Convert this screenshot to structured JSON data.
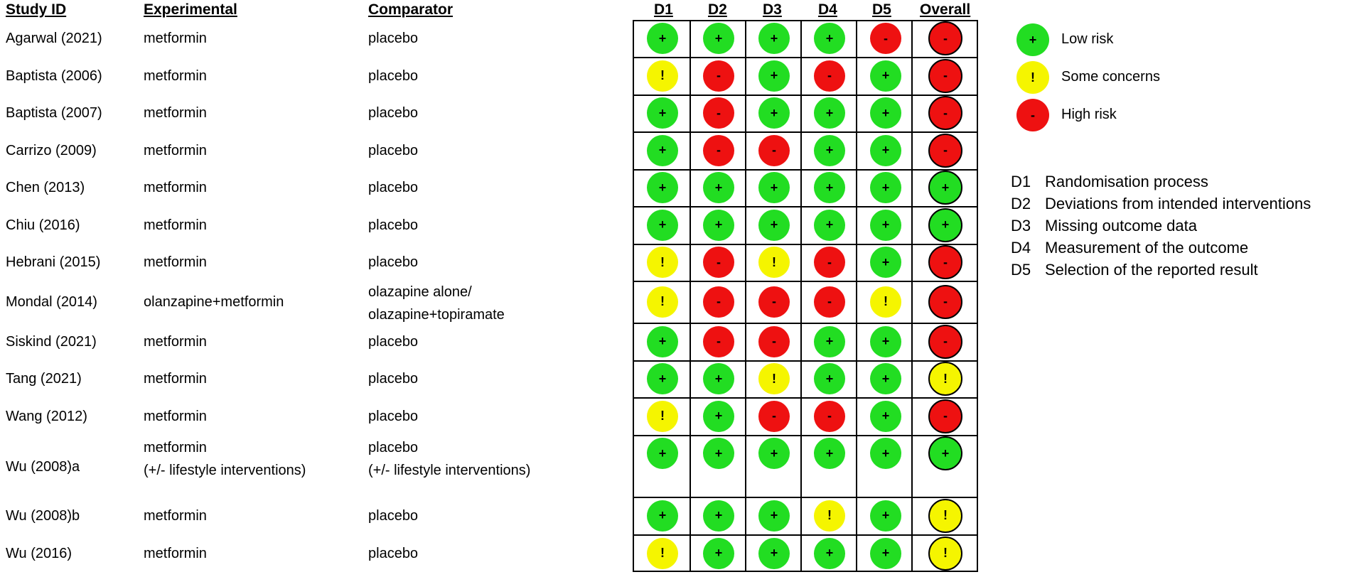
{
  "headers": {
    "study_id": "Study ID",
    "experimental": "Experimental",
    "comparator": "Comparator",
    "d1": "D1",
    "d2": "D2",
    "d3": "D3",
    "d4": "D4",
    "d5": "D5",
    "overall": "Overall"
  },
  "colors": {
    "low": "#22dd22",
    "some": "#f5f500",
    "high": "#ee1111"
  },
  "symbols": {
    "low": "+",
    "some": "!",
    "high": "-"
  },
  "studies": [
    {
      "id": "Agarwal (2021)",
      "experimental": [
        "metformin"
      ],
      "comparator": [
        "placebo"
      ],
      "d": [
        "low",
        "low",
        "low",
        "low",
        "high"
      ],
      "overall": "high"
    },
    {
      "id": "Baptista (2006)",
      "experimental": [
        "metformin"
      ],
      "comparator": [
        "placebo"
      ],
      "d": [
        "some",
        "high",
        "low",
        "high",
        "low"
      ],
      "overall": "high"
    },
    {
      "id": "Baptista (2007)",
      "experimental": [
        "metformin"
      ],
      "comparator": [
        "placebo"
      ],
      "d": [
        "low",
        "high",
        "low",
        "low",
        "low"
      ],
      "overall": "high"
    },
    {
      "id": "Carrizo (2009)",
      "experimental": [
        "metformin"
      ],
      "comparator": [
        "placebo"
      ],
      "d": [
        "low",
        "high",
        "high",
        "low",
        "low"
      ],
      "overall": "high"
    },
    {
      "id": "Chen (2013)",
      "experimental": [
        "metformin"
      ],
      "comparator": [
        "placebo"
      ],
      "d": [
        "low",
        "low",
        "low",
        "low",
        "low"
      ],
      "overall": "low"
    },
    {
      "id": "Chiu (2016)",
      "experimental": [
        "metformin"
      ],
      "comparator": [
        "placebo"
      ],
      "d": [
        "low",
        "low",
        "low",
        "low",
        "low"
      ],
      "overall": "low"
    },
    {
      "id": "Hebrani (2015)",
      "experimental": [
        "metformin"
      ],
      "comparator": [
        "placebo"
      ],
      "d": [
        "some",
        "high",
        "some",
        "high",
        "low"
      ],
      "overall": "high"
    },
    {
      "id": "Mondal (2014)",
      "experimental": [
        "olanzapine+metformin"
      ],
      "comparator": [
        "olazapine alone/",
        "olazapine+topiramate"
      ],
      "d": [
        "some",
        "high",
        "high",
        "high",
        "some"
      ],
      "overall": "high"
    },
    {
      "id": "Siskind (2021)",
      "experimental": [
        "metformin"
      ],
      "comparator": [
        "placebo"
      ],
      "d": [
        "low",
        "high",
        "high",
        "low",
        "low"
      ],
      "overall": "high"
    },
    {
      "id": "Tang (2021)",
      "experimental": [
        "metformin"
      ],
      "comparator": [
        "placebo"
      ],
      "d": [
        "low",
        "low",
        "some",
        "low",
        "low"
      ],
      "overall": "some"
    },
    {
      "id": "Wang (2012)",
      "experimental": [
        "metformin"
      ],
      "comparator": [
        "placebo"
      ],
      "d": [
        "some",
        "low",
        "high",
        "high",
        "low"
      ],
      "overall": "high"
    },
    {
      "id": "Wu (2008)a",
      "experimental": [
        "metformin",
        "(+/- lifestyle interventions)"
      ],
      "comparator": [
        "placebo",
        "(+/- lifestyle interventions)"
      ],
      "d": [
        "low",
        "low",
        "low",
        "low",
        "low"
      ],
      "overall": "low"
    },
    {
      "id": "Wu (2008)b",
      "experimental": [
        "metformin"
      ],
      "comparator": [
        "placebo"
      ],
      "d": [
        "low",
        "low",
        "low",
        "some",
        "low"
      ],
      "overall": "some"
    },
    {
      "id": "Wu (2016)",
      "experimental": [
        "metformin"
      ],
      "comparator": [
        "placebo"
      ],
      "d": [
        "some",
        "low",
        "low",
        "low",
        "low"
      ],
      "overall": "some"
    }
  ],
  "legend": [
    {
      "level": "low",
      "label": "Low risk"
    },
    {
      "level": "some",
      "label": "Some concerns"
    },
    {
      "level": "high",
      "label": "High risk"
    }
  ],
  "domains": [
    {
      "code": "D1",
      "desc": "Randomisation process"
    },
    {
      "code": "D2",
      "desc": "Deviations from intended interventions"
    },
    {
      "code": "D3",
      "desc": "Missing outcome data"
    },
    {
      "code": "D4",
      "desc": "Measurement of the outcome"
    },
    {
      "code": "D5",
      "desc": "Selection of the reported result"
    }
  ]
}
